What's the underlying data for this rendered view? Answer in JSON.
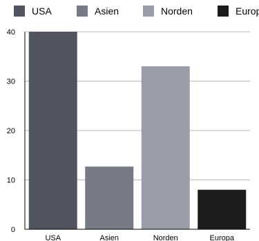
{
  "chart_data": {
    "type": "bar",
    "title": "",
    "xlabel": "",
    "ylabel": "",
    "categories": [
      "USA",
      "Asien",
      "Norden",
      "Europa"
    ],
    "values": [
      40,
      12.7,
      33,
      8
    ],
    "colors": [
      "#505460",
      "#777b85",
      "#999ca9",
      "#1c1c1c"
    ],
    "ylim": [
      0,
      40
    ],
    "yticks": [
      "0",
      "10",
      "20",
      "30",
      "40"
    ],
    "ytick_values": [
      0,
      10,
      20,
      30,
      40
    ],
    "grid": "horizontal",
    "legend_position": "top",
    "legend": [
      "USA",
      "Asien",
      "Norden",
      "Europa"
    ]
  }
}
